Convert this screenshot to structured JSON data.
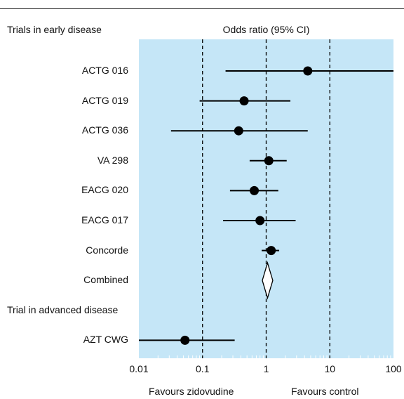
{
  "header": {
    "left": "Trials in early disease",
    "center": "Odds ratio (95% CI)"
  },
  "chart_data": {
    "type": "forest",
    "xscale": "log",
    "xlim": [
      0.01,
      100
    ],
    "xticks": [
      "0.01",
      "0.1",
      "1",
      "10",
      "100"
    ],
    "reference_lines": [
      0.1,
      1,
      10
    ],
    "rows": [
      {
        "label": "ACTG 016",
        "kind": "study",
        "or": 4.5,
        "lo": 0.23,
        "hi": 100
      },
      {
        "label": "ACTG 019",
        "kind": "study",
        "or": 0.45,
        "lo": 0.09,
        "hi": 2.4
      },
      {
        "label": "ACTG 036",
        "kind": "study",
        "or": 0.37,
        "lo": 0.032,
        "hi": 4.5
      },
      {
        "label": "VA 298",
        "kind": "study",
        "or": 1.1,
        "lo": 0.55,
        "hi": 2.1
      },
      {
        "label": "EACG 020",
        "kind": "study",
        "or": 0.65,
        "lo": 0.27,
        "hi": 1.55
      },
      {
        "label": "EACG 017",
        "kind": "study",
        "or": 0.8,
        "lo": 0.21,
        "hi": 2.9
      },
      {
        "label": "Concorde",
        "kind": "study",
        "or": 1.2,
        "lo": 0.85,
        "hi": 1.6
      },
      {
        "label": "Combined",
        "kind": "combined",
        "or": 1.05,
        "lo": 0.87,
        "hi": 1.27
      },
      {
        "label": "Trial in advanced disease",
        "kind": "section"
      },
      {
        "label": "AZT CWG",
        "kind": "study",
        "or": 0.053,
        "lo": 0.01,
        "hi": 0.32
      }
    ],
    "xlabel_left": "Favours zidovudine",
    "xlabel_right": "Favours control",
    "background_color": "#c5e6f7",
    "mark_color": "#000000"
  }
}
